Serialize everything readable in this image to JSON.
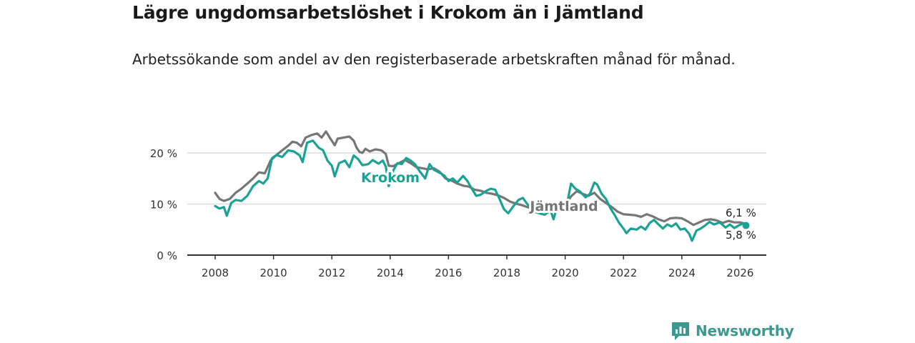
{
  "title": "Lägre ungdomsarbetslöshet i Krokom än i Jämtland",
  "subtitle": "Arbetssökande som andel av den registerbaserade arbetskraften månad för månad.",
  "brand": {
    "name": "Newsworthy",
    "icon": "newsworthy-logo-icon"
  },
  "colors": {
    "krokom": "#1aa394",
    "jamtland": "#767676",
    "grid": "#dcdcdc",
    "axis": "#333333"
  },
  "chart_data": {
    "type": "line",
    "title": "Lägre ungdomsarbetslöshet i Krokom än i Jämtland",
    "xlabel": "",
    "ylabel": "",
    "xlim": [
      2007.5,
      2027.1
    ],
    "ylim": [
      0,
      20
    ],
    "yticks": [
      0,
      10,
      20
    ],
    "ytick_labels": [
      "0 %",
      "10 %",
      "20 %"
    ],
    "xticks": [
      2008,
      2010,
      2012,
      2014,
      2016,
      2018,
      2020,
      2022,
      2024,
      2026
    ],
    "xtick_labels": [
      "2008",
      "2010",
      "2012",
      "2014",
      "2016",
      "2018",
      "2020",
      "2022",
      "2024",
      "2026"
    ],
    "grid": true,
    "series": [
      {
        "name": "Jämtland",
        "label": "Jämtland",
        "end_label": "6,1 %",
        "points": [
          [
            2008.0,
            12.2
          ],
          [
            2008.15,
            11.0
          ],
          [
            2008.3,
            10.6
          ],
          [
            2008.5,
            11.0
          ],
          [
            2008.7,
            12.2
          ],
          [
            2008.9,
            13.0
          ],
          [
            2009.1,
            14.0
          ],
          [
            2009.3,
            15.0
          ],
          [
            2009.5,
            16.2
          ],
          [
            2009.7,
            16.0
          ],
          [
            2009.9,
            18.5
          ],
          [
            2010.1,
            19.6
          ],
          [
            2010.3,
            20.5
          ],
          [
            2010.5,
            21.4
          ],
          [
            2010.65,
            22.2
          ],
          [
            2010.8,
            22.0
          ],
          [
            2010.95,
            21.3
          ],
          [
            2011.1,
            23.0
          ],
          [
            2011.3,
            23.5
          ],
          [
            2011.5,
            23.8
          ],
          [
            2011.65,
            23.0
          ],
          [
            2011.8,
            24.2
          ],
          [
            2011.95,
            22.8
          ],
          [
            2012.1,
            21.5
          ],
          [
            2012.2,
            22.8
          ],
          [
            2012.4,
            23.0
          ],
          [
            2012.6,
            23.2
          ],
          [
            2012.75,
            22.4
          ],
          [
            2012.85,
            21.0
          ],
          [
            2012.95,
            20.2
          ],
          [
            2013.05,
            20.0
          ],
          [
            2013.15,
            20.8
          ],
          [
            2013.3,
            20.3
          ],
          [
            2013.5,
            20.7
          ],
          [
            2013.7,
            20.5
          ],
          [
            2013.85,
            19.8
          ],
          [
            2013.95,
            17.5
          ],
          [
            2014.1,
            17.4
          ],
          [
            2014.3,
            18.0
          ],
          [
            2014.5,
            18.6
          ],
          [
            2014.7,
            18.0
          ],
          [
            2014.9,
            17.2
          ],
          [
            2015.1,
            17.0
          ],
          [
            2015.3,
            16.8
          ],
          [
            2015.5,
            17.0
          ],
          [
            2015.7,
            16.3
          ],
          [
            2015.9,
            15.0
          ],
          [
            2016.1,
            14.6
          ],
          [
            2016.3,
            14.0
          ],
          [
            2016.5,
            13.6
          ],
          [
            2016.7,
            13.4
          ],
          [
            2016.9,
            12.8
          ],
          [
            2017.1,
            12.6
          ],
          [
            2017.3,
            12.2
          ],
          [
            2017.5,
            12.0
          ],
          [
            2017.7,
            11.7
          ],
          [
            2017.9,
            11.2
          ],
          [
            2018.1,
            10.5
          ],
          [
            2018.3,
            10.1
          ],
          [
            2018.5,
            9.8
          ],
          [
            2018.7,
            9.4
          ],
          [
            2018.9,
            9.1
          ]
        ]
      },
      {
        "name": "Jämtland",
        "label": "",
        "end_label": "",
        "points": [
          [
            2020.0,
            9.6
          ],
          [
            2020.2,
            11.5
          ],
          [
            2020.4,
            12.5
          ],
          [
            2020.6,
            12.0
          ],
          [
            2020.8,
            11.6
          ],
          [
            2021.0,
            12.2
          ],
          [
            2021.2,
            11.0
          ],
          [
            2021.4,
            10.2
          ],
          [
            2021.6,
            9.4
          ],
          [
            2021.8,
            8.5
          ],
          [
            2022.0,
            8.0
          ],
          [
            2022.2,
            7.9
          ],
          [
            2022.4,
            7.8
          ],
          [
            2022.6,
            7.5
          ],
          [
            2022.8,
            8.0
          ],
          [
            2023.0,
            7.6
          ],
          [
            2023.2,
            7.0
          ],
          [
            2023.4,
            6.6
          ],
          [
            2023.6,
            7.2
          ],
          [
            2023.8,
            7.3
          ],
          [
            2024.0,
            7.2
          ],
          [
            2024.2,
            6.6
          ],
          [
            2024.4,
            5.9
          ],
          [
            2024.6,
            6.4
          ],
          [
            2024.8,
            6.9
          ],
          [
            2025.0,
            7.0
          ],
          [
            2025.2,
            6.8
          ],
          [
            2025.4,
            6.3
          ],
          [
            2025.6,
            6.7
          ],
          [
            2025.8,
            6.4
          ],
          [
            2026.0,
            6.4
          ],
          [
            2026.2,
            6.1
          ]
        ]
      },
      {
        "name": "Krokom",
        "label": "Krokom",
        "end_label": "5,8 %",
        "points": [
          [
            2008.0,
            9.6
          ],
          [
            2008.15,
            9.1
          ],
          [
            2008.3,
            9.4
          ],
          [
            2008.4,
            7.7
          ],
          [
            2008.55,
            10.2
          ],
          [
            2008.7,
            10.8
          ],
          [
            2008.9,
            10.6
          ],
          [
            2009.1,
            11.6
          ],
          [
            2009.3,
            13.5
          ],
          [
            2009.5,
            14.5
          ],
          [
            2009.65,
            14.0
          ],
          [
            2009.8,
            15.0
          ],
          [
            2009.95,
            19.0
          ],
          [
            2010.1,
            19.6
          ],
          [
            2010.3,
            19.2
          ],
          [
            2010.5,
            20.5
          ],
          [
            2010.7,
            20.3
          ],
          [
            2010.9,
            19.5
          ],
          [
            2011.0,
            18.2
          ],
          [
            2011.15,
            22.0
          ],
          [
            2011.35,
            22.4
          ],
          [
            2011.55,
            21.0
          ],
          [
            2011.7,
            20.5
          ],
          [
            2011.85,
            18.5
          ],
          [
            2012.0,
            17.5
          ],
          [
            2012.1,
            15.4
          ],
          [
            2012.25,
            18.0
          ],
          [
            2012.45,
            18.5
          ],
          [
            2012.6,
            17.2
          ],
          [
            2012.75,
            19.5
          ],
          [
            2012.9,
            18.8
          ],
          [
            2013.05,
            17.6
          ],
          [
            2013.25,
            17.8
          ],
          [
            2013.4,
            18.6
          ],
          [
            2013.6,
            17.9
          ],
          [
            2013.75,
            18.5
          ],
          [
            2013.85,
            17.3
          ],
          [
            2013.95,
            13.5
          ],
          [
            2014.1,
            16.5
          ],
          [
            2014.25,
            18.0
          ],
          [
            2014.4,
            17.8
          ],
          [
            2014.55,
            19.0
          ],
          [
            2014.7,
            18.5
          ],
          [
            2014.85,
            17.8
          ],
          [
            2015.0,
            16.5
          ],
          [
            2015.2,
            15.0
          ],
          [
            2015.35,
            17.8
          ],
          [
            2015.5,
            16.7
          ],
          [
            2015.7,
            16.1
          ],
          [
            2015.85,
            15.6
          ],
          [
            2016.0,
            14.5
          ],
          [
            2016.15,
            15.0
          ],
          [
            2016.3,
            14.2
          ],
          [
            2016.5,
            15.5
          ],
          [
            2016.65,
            14.5
          ],
          [
            2016.8,
            13.0
          ],
          [
            2016.95,
            11.6
          ],
          [
            2017.1,
            11.8
          ],
          [
            2017.3,
            12.6
          ],
          [
            2017.45,
            13.0
          ],
          [
            2017.6,
            12.8
          ],
          [
            2017.75,
            11.0
          ],
          [
            2017.9,
            9.0
          ],
          [
            2018.05,
            8.2
          ],
          [
            2018.2,
            9.4
          ],
          [
            2018.4,
            10.8
          ],
          [
            2018.55,
            11.2
          ],
          [
            2018.7,
            10.0
          ],
          [
            2018.85,
            9.0
          ],
          [
            2018.95,
            8.5
          ],
          [
            2019.1,
            8.2
          ],
          [
            2019.3,
            7.9
          ],
          [
            2019.5,
            8.8
          ],
          [
            2019.6,
            7.0
          ],
          [
            2019.75,
            10.0
          ],
          [
            2019.9,
            9.2
          ],
          [
            2020.05,
            9.6
          ],
          [
            2020.2,
            14.0
          ],
          [
            2020.35,
            13.0
          ],
          [
            2020.5,
            12.5
          ],
          [
            2020.7,
            11.3
          ],
          [
            2020.85,
            12.0
          ],
          [
            2021.0,
            14.2
          ],
          [
            2021.1,
            13.8
          ],
          [
            2021.25,
            12.0
          ],
          [
            2021.4,
            11.0
          ],
          [
            2021.55,
            9.2
          ],
          [
            2021.7,
            7.8
          ],
          [
            2021.85,
            6.3
          ],
          [
            2022.0,
            5.2
          ],
          [
            2022.1,
            4.3
          ],
          [
            2022.25,
            5.2
          ],
          [
            2022.45,
            5.0
          ],
          [
            2022.6,
            5.6
          ],
          [
            2022.75,
            5.0
          ],
          [
            2022.9,
            6.3
          ],
          [
            2023.05,
            6.9
          ],
          [
            2023.2,
            6.0
          ],
          [
            2023.35,
            5.2
          ],
          [
            2023.5,
            6.0
          ],
          [
            2023.65,
            5.6
          ],
          [
            2023.8,
            6.2
          ],
          [
            2023.95,
            5.0
          ],
          [
            2024.1,
            5.2
          ],
          [
            2024.25,
            4.2
          ],
          [
            2024.35,
            2.8
          ],
          [
            2024.5,
            4.8
          ],
          [
            2024.65,
            5.2
          ],
          [
            2024.8,
            5.8
          ],
          [
            2024.95,
            6.5
          ],
          [
            2025.1,
            6.0
          ],
          [
            2025.3,
            6.4
          ],
          [
            2025.5,
            5.4
          ],
          [
            2025.65,
            6.0
          ],
          [
            2025.8,
            5.3
          ],
          [
            2025.95,
            5.8
          ],
          [
            2026.1,
            6.2
          ],
          [
            2026.2,
            5.8
          ]
        ]
      }
    ]
  }
}
